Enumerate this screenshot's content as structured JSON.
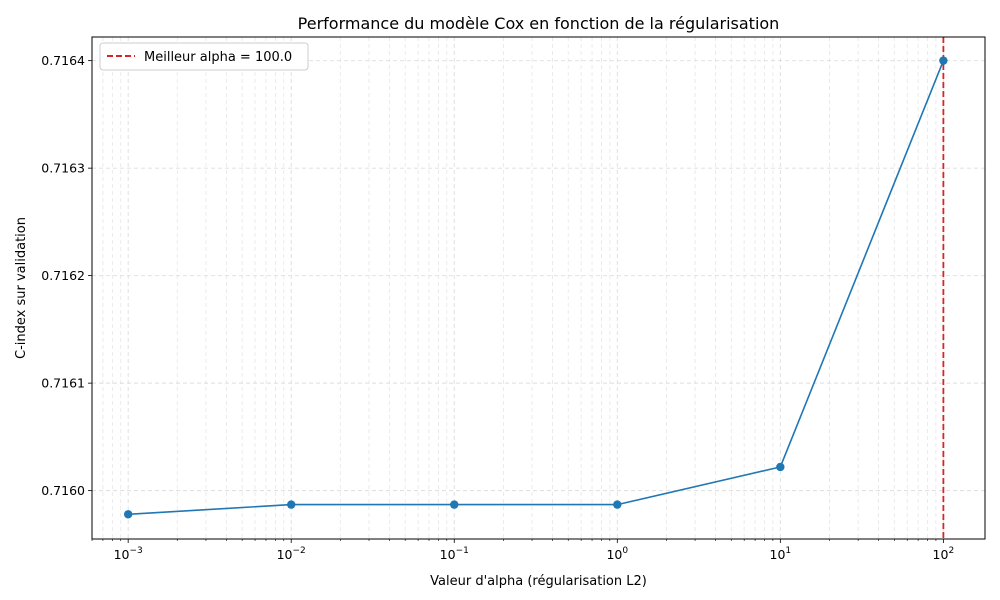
{
  "chart_data": {
    "type": "line",
    "title": "Performance du modèle Cox en fonction de la régularisation",
    "xlabel": "Valeur d'alpha (régularisation L2)",
    "ylabel": "C-index sur validation",
    "x_scale": "log",
    "xlim": [
      0.0006,
      180
    ],
    "ylim": [
      0.715955,
      0.716422
    ],
    "x_ticks": [
      {
        "value": 0.001,
        "base": "10",
        "exp": "−3"
      },
      {
        "value": 0.01,
        "base": "10",
        "exp": "−2"
      },
      {
        "value": 0.1,
        "base": "10",
        "exp": "−1"
      },
      {
        "value": 1,
        "base": "10",
        "exp": "0"
      },
      {
        "value": 10,
        "base": "10",
        "exp": "1"
      },
      {
        "value": 100,
        "base": "10",
        "exp": "2"
      }
    ],
    "y_ticks": [
      {
        "value": 0.716,
        "label": "0.7160"
      },
      {
        "value": 0.7161,
        "label": "0.7161"
      },
      {
        "value": 0.7162,
        "label": "0.7162"
      },
      {
        "value": 0.7163,
        "label": "0.7163"
      },
      {
        "value": 0.7164,
        "label": "0.7164"
      }
    ],
    "series": [
      {
        "x": [
          0.001,
          0.01,
          0.1,
          1,
          10,
          100
        ],
        "y": [
          0.715978,
          0.715987,
          0.715987,
          0.715987,
          0.716022,
          0.7164
        ],
        "color": "#1f77b4",
        "marker": "circle"
      }
    ],
    "reference_line": {
      "orientation": "vertical",
      "x": 100,
      "color": "#d62728",
      "style": "dashed",
      "label": "Meilleur alpha = 100.0"
    },
    "grid": true,
    "legend_position": "top-left"
  }
}
